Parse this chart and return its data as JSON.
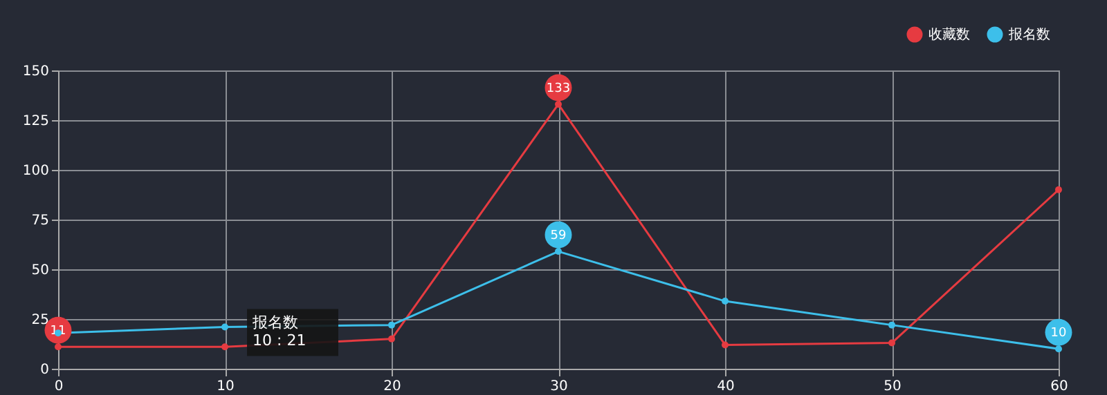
{
  "chart_data": {
    "type": "line",
    "x": [
      0,
      10,
      20,
      30,
      40,
      50,
      60
    ],
    "series": [
      {
        "name": "收藏数",
        "color": "#e63b41",
        "values": [
          11,
          11,
          15,
          133,
          12,
          13,
          90
        ]
      },
      {
        "name": "报名数",
        "color": "#3dbfea",
        "values": [
          18,
          21,
          22,
          59,
          34,
          22,
          10
        ]
      }
    ],
    "xlim": [
      0,
      60
    ],
    "xticks": [
      0,
      10,
      20,
      30,
      40,
      50,
      60
    ],
    "ylim": [
      0,
      150
    ],
    "yticks": [
      0,
      25,
      50,
      75,
      100,
      125,
      150
    ],
    "grid": true,
    "legend": "top right",
    "marker": "circle",
    "line_style": "solid",
    "annotations": [
      {
        "text": "133",
        "x": 30,
        "y": 133
      },
      {
        "text": "59",
        "x": 30,
        "y": 59
      },
      {
        "text": "11",
        "x": 0,
        "y": 11
      },
      {
        "text": "10",
        "x": 60,
        "y": 10
      },
      {
        "text": "报名数\n10 : 21",
        "x": 10,
        "y": 21
      }
    ]
  }
}
